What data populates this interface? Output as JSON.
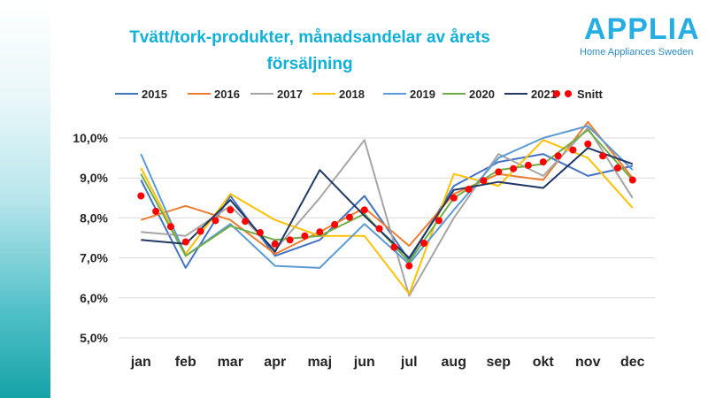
{
  "header": {
    "title_line1": "Tvätt/tork-produkter, månadsandelar av årets",
    "title_line2": "försäljning"
  },
  "logo": {
    "name": "APPLIA",
    "subtitle": "Home Appliances Sweden"
  },
  "chart_data": {
    "type": "line",
    "title": "Tvätt/tork-produkter, månadsandelar av årets försäljning",
    "categories": [
      "jan",
      "feb",
      "mar",
      "apr",
      "maj",
      "jun",
      "jul",
      "aug",
      "sep",
      "okt",
      "nov",
      "dec"
    ],
    "ylim": [
      5.0,
      10.0
    ],
    "yticks": [
      5.0,
      6.0,
      7.0,
      8.0,
      9.0,
      10.0
    ],
    "ytick_labels": [
      "5,0%",
      "6,0%",
      "7,0%",
      "8,0%",
      "9,0%",
      "10,0%"
    ],
    "grid": true,
    "legend_position": "top",
    "series": [
      {
        "name": "2015",
        "color": "#4472c4",
        "values": [
          8.95,
          6.75,
          8.55,
          7.05,
          7.45,
          8.55,
          6.95,
          8.8,
          9.4,
          9.6,
          9.05,
          9.3
        ]
      },
      {
        "name": "2016",
        "color": "#ed7d31",
        "values": [
          7.95,
          8.3,
          7.95,
          7.1,
          7.65,
          8.25,
          7.3,
          8.6,
          9.1,
          8.95,
          10.4,
          9.0
        ]
      },
      {
        "name": "2017",
        "color": "#a5a5a5",
        "values": [
          7.65,
          7.55,
          8.3,
          7.2,
          8.5,
          9.95,
          6.05,
          8.0,
          9.6,
          9.05,
          10.25,
          8.5
        ]
      },
      {
        "name": "2018",
        "color": "#ffc000",
        "values": [
          9.25,
          7.1,
          8.6,
          7.95,
          7.55,
          7.55,
          6.1,
          9.1,
          8.8,
          9.95,
          9.5,
          8.25
        ]
      },
      {
        "name": "2019",
        "color": "#5b9bd5",
        "values": [
          9.6,
          7.05,
          7.85,
          6.8,
          6.75,
          7.85,
          6.85,
          8.2,
          9.5,
          10.0,
          10.3,
          9.2
        ]
      },
      {
        "name": "2020",
        "color": "#70ad47",
        "values": [
          9.1,
          7.05,
          7.8,
          7.45,
          7.55,
          8.1,
          6.9,
          8.5,
          9.2,
          9.35,
          10.2,
          8.95
        ]
      },
      {
        "name": "2021",
        "color": "#203864",
        "values": [
          7.45,
          7.35,
          8.45,
          7.15,
          9.2,
          8.05,
          7.0,
          8.7,
          8.9,
          8.75,
          9.75,
          9.35
        ]
      }
    ],
    "average": {
      "name": "Snitt",
      "color": "#ff0000",
      "values": [
        8.55,
        7.4,
        8.2,
        7.35,
        7.65,
        8.2,
        6.8,
        8.5,
        9.15,
        9.4,
        9.85,
        8.95
      ]
    }
  }
}
